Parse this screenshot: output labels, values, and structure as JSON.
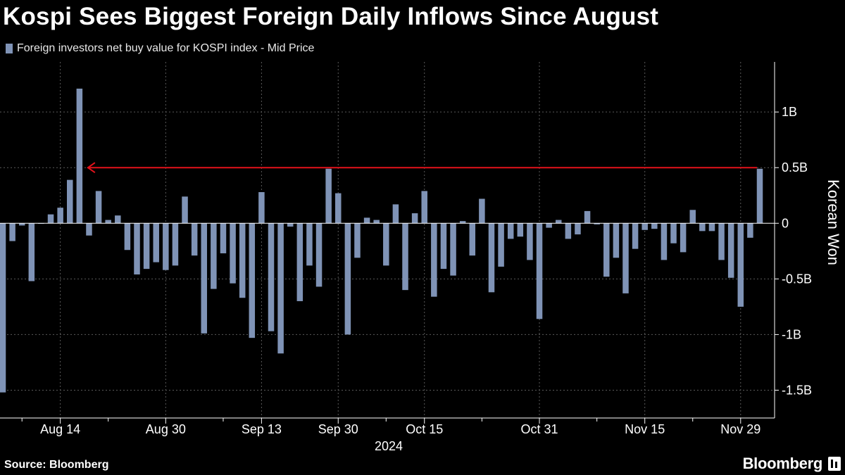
{
  "header": {
    "title": "Kospi Sees Biggest Foreign Daily Inflows Since August"
  },
  "legend": {
    "label": "Foreign investors net buy value for KOSPI index - Mid Price",
    "color": "#7f93b6"
  },
  "footer": {
    "source": "Source: Bloomberg",
    "brand": "Bloomberg"
  },
  "colors": {
    "background": "#000000",
    "bar": "#7f93b6",
    "annotation_arrow": "#e3121b",
    "grid": "#5a5a5a"
  },
  "chart_data": {
    "type": "bar",
    "title": "Kospi Sees Biggest Foreign Daily Inflows Since August",
    "ylabel": "Korean Won",
    "y_axis_position": "right",
    "ylim": [
      -1.75,
      1.45
    ],
    "y_ticks": [
      {
        "value": 1,
        "label": "1B"
      },
      {
        "value": 0.5,
        "label": "0.5B"
      },
      {
        "value": 0,
        "label": "0"
      },
      {
        "value": -0.5,
        "label": "-0.5B"
      },
      {
        "value": -1,
        "label": "-1B"
      },
      {
        "value": -1.5,
        "label": "-1.5B"
      }
    ],
    "x_ticks": [
      {
        "label": "Aug 14",
        "index": 6
      },
      {
        "label": "Aug 30",
        "index": 17
      },
      {
        "label": "Sep 13",
        "index": 27
      },
      {
        "label": "Sep 30",
        "index": 35
      },
      {
        "label": "Oct 15",
        "index": 44
      },
      {
        "label": "Oct 31",
        "index": 56
      },
      {
        "label": "Nov 15",
        "index": 67
      },
      {
        "label": "Nov 29",
        "index": 77
      }
    ],
    "x_year_label": "2024",
    "x_minor_tick_indices": [
      2,
      11,
      23,
      40,
      50,
      62,
      72
    ],
    "grid": true,
    "legend_position": "top-left",
    "series": [
      {
        "name": "Foreign investors net buy value for KOSPI index - Mid Price",
        "values": [
          -1.52,
          -0.16,
          -0.02,
          -0.52,
          0,
          0.08,
          0.14,
          0.39,
          1.21,
          -0.11,
          0.29,
          0.03,
          0.07,
          -0.24,
          -0.46,
          -0.41,
          -0.35,
          -0.42,
          -0.38,
          0.24,
          -0.29,
          -0.99,
          -0.59,
          -0.27,
          -0.54,
          -0.67,
          -1.03,
          0.28,
          -0.97,
          -1.17,
          -0.03,
          -0.7,
          -0.38,
          -0.57,
          0.49,
          0.27,
          -1.0,
          -0.31,
          0.05,
          0.03,
          -0.38,
          0.17,
          -0.6,
          0.09,
          0.29,
          -0.66,
          -0.41,
          -0.47,
          0.02,
          -0.29,
          0.22,
          -0.62,
          -0.39,
          -0.14,
          -0.12,
          -0.33,
          -0.86,
          -0.04,
          0.03,
          -0.14,
          -0.1,
          0.11,
          -0.01,
          -0.48,
          -0.31,
          -0.63,
          -0.23,
          -0.06,
          -0.05,
          -0.33,
          -0.18,
          -0.26,
          0.12,
          -0.07,
          -0.07,
          -0.33,
          -0.49,
          -0.75,
          -0.13,
          0.49
        ]
      }
    ],
    "annotations": [
      {
        "type": "arrow",
        "y": 0.5,
        "from_index": 79,
        "to_index": 8
      }
    ]
  }
}
